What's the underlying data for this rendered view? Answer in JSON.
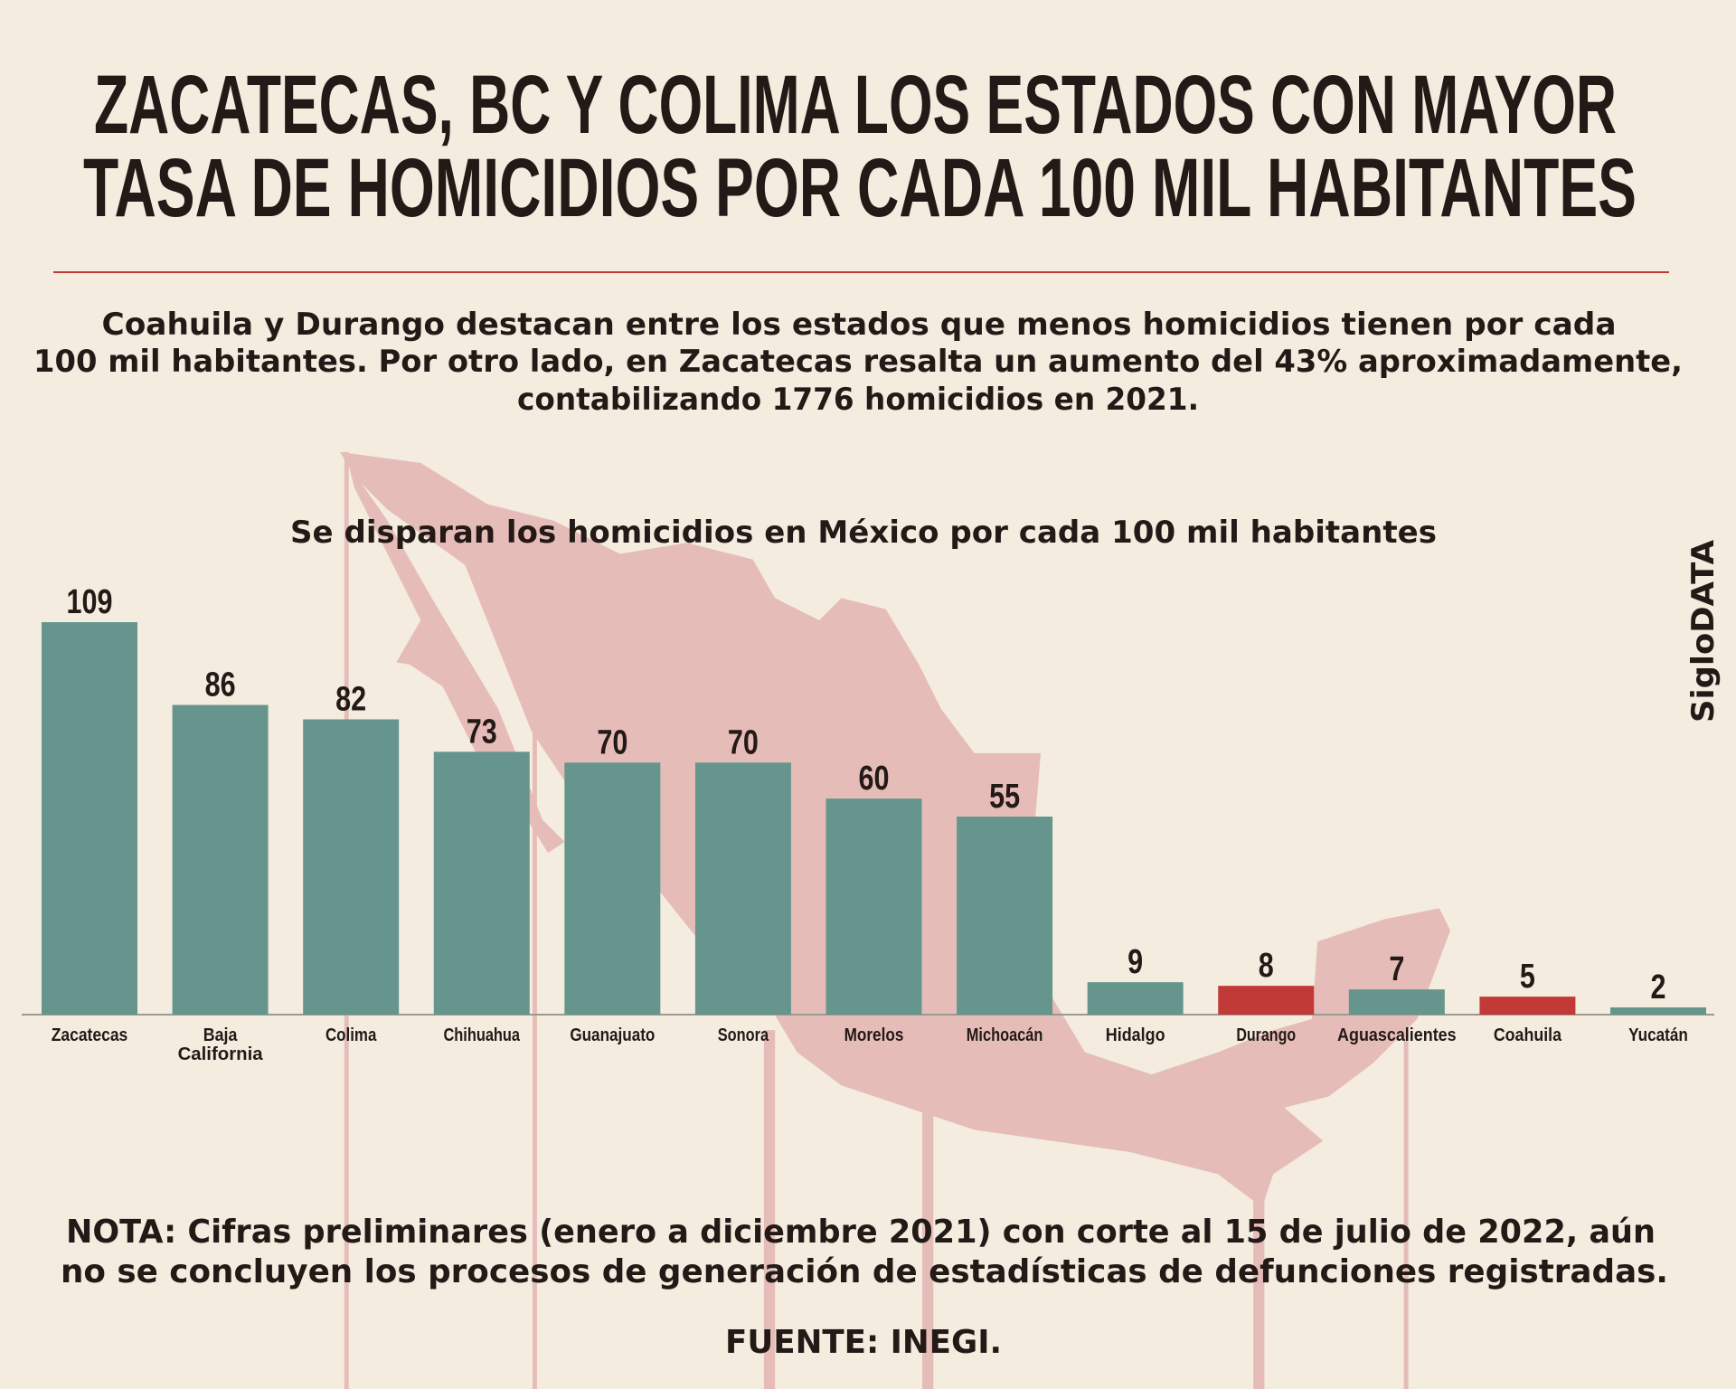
{
  "title": {
    "line1": "ZACATECAS, BC Y COLIMA LOS ESTADOS CON MAYOR",
    "line2": "TASA DE HOMICIDIOS POR CADA 100 MIL HABITANTES"
  },
  "subtitle": {
    "line1": "Coahuila y Durango destacan entre los estados que menos homicidios tienen por cada",
    "line2": "100 mil habitantes. Por otro lado, en Zacatecas resalta un aumento del 43% aproximadamente,",
    "line3": "contabilizando 1776 homicidios en 2021."
  },
  "brand": "SigloDATA",
  "note": {
    "line1": "NOTA: Cifras preliminares (enero a diciembre 2021) con corte al 15 de julio de 2022, aún",
    "line2": "no se concluyen los procesos de generación de estadísticas de defunciones registradas."
  },
  "source": "FUENTE: INEGI.",
  "colors": {
    "background": "#f4ecdf",
    "bar": "#66958e",
    "highlight": "#c23a37",
    "map": "#e6bcb9",
    "rule": "#c23a37"
  },
  "chart_data": {
    "type": "bar",
    "title": "Se disparan los homicidios en México por cada 100 mil habitantes",
    "xlabel": "",
    "ylabel": "",
    "ylim": [
      0,
      109
    ],
    "grid": false,
    "categories": [
      "Zacatecas",
      "Baja California",
      "Colima",
      "Chihuahua",
      "Guanajuato",
      "Sonora",
      "Morelos",
      "Michoacán",
      "Hidalgo",
      "Durango",
      "Aguascalientes",
      "Coahuila",
      "Yucatán"
    ],
    "values": [
      109,
      86,
      82,
      73,
      70,
      70,
      60,
      55,
      9,
      8,
      7,
      5,
      2
    ],
    "highlighted": [
      "Durango",
      "Coahuila"
    ]
  }
}
